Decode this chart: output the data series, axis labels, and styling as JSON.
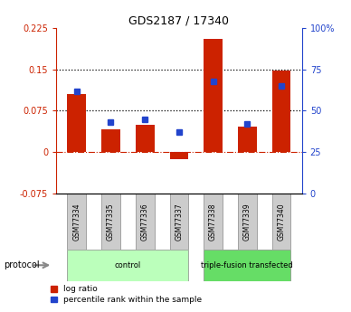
{
  "title": "GDS2187 / 17340",
  "samples": [
    "GSM77334",
    "GSM77335",
    "GSM77336",
    "GSM77337",
    "GSM77338",
    "GSM77339",
    "GSM77340"
  ],
  "log_ratio": [
    0.105,
    0.042,
    0.05,
    -0.012,
    0.205,
    0.046,
    0.148
  ],
  "percentile_rank": [
    62,
    43,
    45,
    37,
    68,
    42,
    65
  ],
  "bar_color": "#cc2200",
  "dot_color": "#2244cc",
  "left_ylim": [
    -0.075,
    0.225
  ],
  "right_ylim": [
    0,
    100
  ],
  "left_yticks": [
    -0.075,
    0,
    0.075,
    0.15,
    0.225
  ],
  "left_ytick_labels": [
    "-0.075",
    "0",
    "0.075",
    "0.15",
    "0.225"
  ],
  "right_yticks": [
    0,
    25,
    50,
    75,
    100
  ],
  "right_ytick_labels": [
    "0",
    "25",
    "50",
    "75",
    "100%"
  ],
  "hline_values": [
    0.075,
    0.15
  ],
  "protocol_groups": [
    {
      "label": "control",
      "start": 0,
      "end": 3,
      "color": "#bbffbb"
    },
    {
      "label": "triple-fusion transfected",
      "start": 4,
      "end": 6,
      "color": "#66dd66"
    }
  ],
  "protocol_label": "protocol",
  "legend_items": [
    {
      "color": "#cc2200",
      "label": "log ratio"
    },
    {
      "color": "#2244cc",
      "label": "percentile rank within the sample"
    }
  ],
  "left_axis_color": "#cc2200",
  "right_axis_color": "#2244cc",
  "figsize": [
    3.88,
    3.45
  ],
  "dpi": 100
}
